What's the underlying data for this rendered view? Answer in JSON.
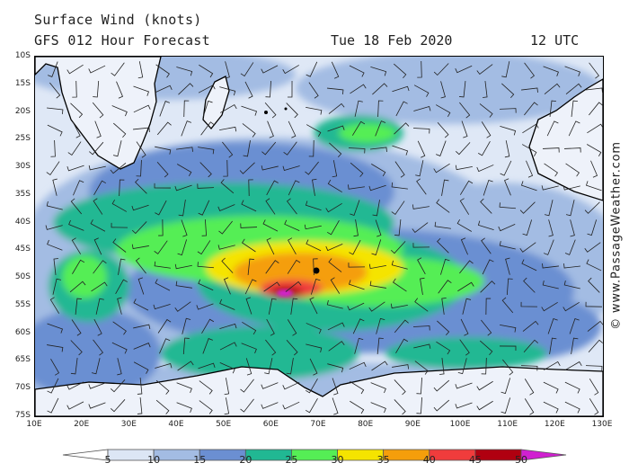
{
  "header": {
    "title": "Surface Wind (knots)",
    "forecast": "GFS 012 Hour Forecast",
    "date": "Tue 18 Feb 2020",
    "time": "12 UTC"
  },
  "copyright": "© www.PassageWeather.com",
  "axes": {
    "lat_labels": [
      "10S",
      "15S",
      "20S",
      "25S",
      "30S",
      "35S",
      "40S",
      "45S",
      "50S",
      "55S",
      "60S",
      "65S",
      "70S",
      "75S"
    ],
    "lon_labels": [
      "10E",
      "20E",
      "30E",
      "40E",
      "50E",
      "60E",
      "70E",
      "80E",
      "90E",
      "100E",
      "110E",
      "120E",
      "130E"
    ]
  },
  "colorbar": {
    "colors": [
      "#ffffff",
      "#dce6f5",
      "#a3bce3",
      "#6b8fd2",
      "#21b893",
      "#55ee55",
      "#f5e400",
      "#f59e0b",
      "#f03c3c",
      "#b00010",
      "#d020d0"
    ],
    "labels": [
      "5",
      "10",
      "15",
      "20",
      "25",
      "30",
      "35",
      "40",
      "45",
      "50"
    ]
  }
}
